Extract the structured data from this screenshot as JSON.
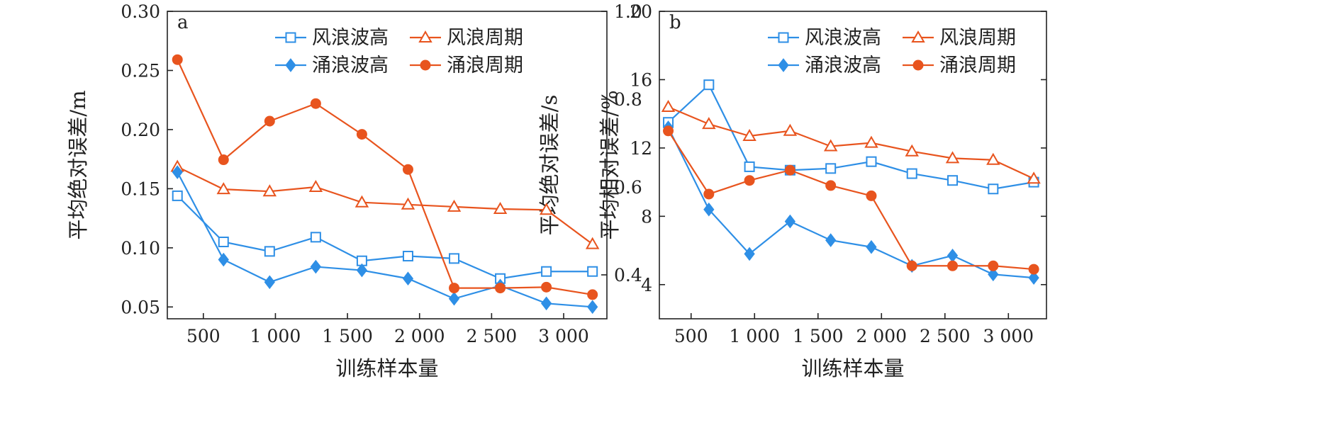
{
  "colors": {
    "blue": "#2e8fe6",
    "orange": "#e8541e"
  },
  "chart_data": [
    {
      "type": "line",
      "panel_label": "a",
      "xlabel": "训练样本量",
      "ylabel": "平均绝对误差/m",
      "ylabel_right": "平均绝对误差/s",
      "xlim": [
        250,
        3300
      ],
      "ylim": [
        0.04,
        0.3
      ],
      "ylim_right": [
        0.3,
        1.0
      ],
      "xticks": [
        500,
        1000,
        1500,
        2000,
        2500,
        3000
      ],
      "xtick_labels": [
        "500",
        "1 000",
        "1 500",
        "2 000",
        "2 500",
        "3 000"
      ],
      "yticks": [
        0.05,
        0.1,
        0.15,
        0.2,
        0.25,
        0.3
      ],
      "ytick_labels": [
        "0.05",
        "0.10",
        "0.15",
        "0.20",
        "0.25",
        "0.30"
      ],
      "yticks_right": [
        0.4,
        0.6,
        0.8,
        1.0
      ],
      "ytick_labels_right": [
        "0.4",
        "0.6",
        "0.8",
        "1.0"
      ],
      "legend_position": "top-right",
      "x": [
        320,
        640,
        960,
        1280,
        1600,
        1920,
        2240,
        2560,
        2880,
        3200
      ],
      "series": [
        {
          "name": "风浪波高",
          "axis": "left",
          "color": "#2e8fe6",
          "marker": "square-open",
          "values": [
            0.144,
            0.105,
            0.097,
            0.109,
            0.089,
            0.093,
            0.091,
            0.074,
            0.08,
            0.08
          ]
        },
        {
          "name": "风浪周期",
          "axis": "right",
          "color": "#e8541e",
          "marker": "triangle-open",
          "values": [
            0.646,
            0.595,
            0.59,
            0.6,
            0.565,
            0.56,
            0.555,
            0.55,
            0.548,
            0.47
          ]
        },
        {
          "name": "涌浪波高",
          "axis": "left",
          "color": "#2e8fe6",
          "marker": "diamond-filled",
          "values": [
            0.164,
            0.09,
            0.071,
            0.084,
            0.081,
            0.074,
            0.057,
            0.068,
            0.053,
            0.05
          ]
        },
        {
          "name": "涌浪周期",
          "axis": "right",
          "color": "#e8541e",
          "marker": "circle-filled",
          "values": [
            0.89,
            0.662,
            0.75,
            0.79,
            0.72,
            0.64,
            0.37,
            0.37,
            0.372,
            0.355
          ]
        }
      ]
    },
    {
      "type": "line",
      "panel_label": "b",
      "xlabel": "训练样本量",
      "ylabel": "平均相对误差/%",
      "xlim": [
        250,
        3300
      ],
      "ylim": [
        2,
        20
      ],
      "xticks": [
        500,
        1000,
        1500,
        2000,
        2500,
        3000
      ],
      "xtick_labels": [
        "500",
        "1 000",
        "1 500",
        "2 000",
        "2 500",
        "3 000"
      ],
      "yticks": [
        4,
        8,
        12,
        16,
        20
      ],
      "ytick_labels": [
        "4",
        "8",
        "12",
        "16",
        "20"
      ],
      "legend_position": "top-right",
      "x": [
        320,
        640,
        960,
        1280,
        1600,
        1920,
        2240,
        2560,
        2880,
        3200
      ],
      "series": [
        {
          "name": "风浪波高",
          "color": "#2e8fe6",
          "marker": "square-open",
          "values": [
            13.5,
            15.7,
            10.9,
            10.7,
            10.8,
            11.2,
            10.5,
            10.1,
            9.6,
            10.0
          ]
        },
        {
          "name": "风浪周期",
          "color": "#e8541e",
          "marker": "triangle-open",
          "values": [
            14.4,
            13.4,
            12.7,
            13.0,
            12.1,
            12.3,
            11.8,
            11.4,
            11.3,
            10.2
          ]
        },
        {
          "name": "涌浪波高",
          "color": "#2e8fe6",
          "marker": "diamond-filled",
          "values": [
            13.2,
            8.4,
            5.8,
            7.7,
            6.6,
            6.2,
            5.1,
            5.7,
            4.6,
            4.4
          ]
        },
        {
          "name": "涌浪周期",
          "color": "#e8541e",
          "marker": "circle-filled",
          "values": [
            13.0,
            9.3,
            10.1,
            10.7,
            9.8,
            9.2,
            5.1,
            5.1,
            5.1,
            4.9
          ]
        }
      ]
    }
  ]
}
